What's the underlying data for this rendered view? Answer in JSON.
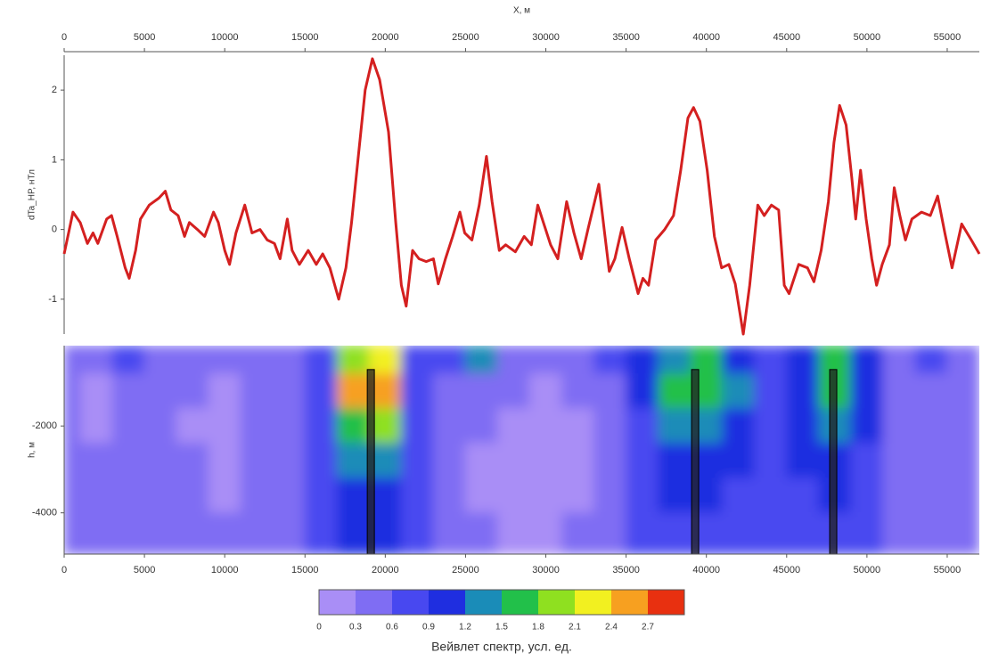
{
  "chart_data": [
    {
      "type": "line",
      "xlabel": "X, м",
      "ylabel": "dTa_HP, нТл",
      "color": "#d42020",
      "xlim": [
        0,
        57000
      ],
      "ylim": [
        -1.5,
        2.5
      ],
      "xticks": [
        0,
        5000,
        10000,
        15000,
        20000,
        25000,
        30000,
        35000,
        40000,
        45000,
        50000,
        55000
      ],
      "yticks": [
        -1,
        0,
        1,
        2
      ],
      "x": [
        0,
        550,
        1000,
        1450,
        1800,
        2100,
        2650,
        2950,
        3300,
        3800,
        4050,
        4450,
        4750,
        5300,
        5900,
        6300,
        6650,
        7100,
        7500,
        7800,
        8300,
        8750,
        9300,
        9600,
        10000,
        10300,
        10700,
        11250,
        11700,
        12200,
        12650,
        13100,
        13450,
        13900,
        14200,
        14650,
        15200,
        15700,
        16100,
        16550,
        17100,
        17550,
        17900,
        18300,
        18750,
        19200,
        19650,
        20200,
        20650,
        21000,
        21300,
        21700,
        22100,
        22550,
        23000,
        23300,
        23750,
        24200,
        24650,
        24950,
        25400,
        25850,
        26300,
        26650,
        27100,
        27500,
        28100,
        28650,
        29100,
        29500,
        29850,
        30300,
        30750,
        31300,
        31750,
        32200,
        32650,
        33300,
        33650,
        33950,
        34300,
        34750,
        35200,
        35750,
        36050,
        36400,
        36850,
        37400,
        37950,
        38400,
        38850,
        39200,
        39600,
        40050,
        40500,
        40950,
        41400,
        41800,
        42300,
        42700,
        43200,
        43600,
        44050,
        44500,
        44850,
        45150,
        45750,
        46300,
        46700,
        47150,
        47600,
        47950,
        48300,
        48700,
        49050,
        49300,
        49600,
        49950,
        50300,
        50600,
        50950,
        51400,
        51700,
        52050,
        52400,
        52800,
        53400,
        53950,
        54400,
        54850,
        55300,
        55900,
        56500,
        57000
      ],
      "values": [
        -0.35,
        0.25,
        0.1,
        -0.2,
        -0.05,
        -0.2,
        0.15,
        0.2,
        -0.1,
        -0.55,
        -0.7,
        -0.3,
        0.15,
        0.35,
        0.45,
        0.55,
        0.28,
        0.2,
        -0.1,
        0.1,
        0,
        -0.1,
        0.25,
        0.1,
        -0.3,
        -0.5,
        -0.05,
        0.35,
        -0.05,
        0,
        -0.15,
        -0.2,
        -0.42,
        0.15,
        -0.3,
        -0.5,
        -0.3,
        -0.5,
        -0.35,
        -0.55,
        -1.0,
        -0.55,
        0.1,
        1.0,
        2.0,
        2.45,
        2.15,
        1.4,
        0.1,
        -0.8,
        -1.1,
        -0.3,
        -0.42,
        -0.46,
        -0.42,
        -0.78,
        -0.42,
        -0.1,
        0.25,
        -0.05,
        -0.15,
        0.35,
        1.05,
        0.4,
        -0.3,
        -0.22,
        -0.32,
        -0.1,
        -0.22,
        0.35,
        0.1,
        -0.22,
        -0.42,
        0.4,
        -0.05,
        -0.42,
        0.03,
        0.65,
        -0.03,
        -0.6,
        -0.42,
        0.03,
        -0.42,
        -0.92,
        -0.7,
        -0.8,
        -0.15,
        0,
        0.2,
        0.85,
        1.6,
        1.75,
        1.55,
        0.85,
        -0.1,
        -0.55,
        -0.5,
        -0.78,
        -1.5,
        -0.8,
        0.35,
        0.2,
        0.35,
        0.28,
        -0.8,
        -0.92,
        -0.5,
        -0.55,
        -0.75,
        -0.3,
        0.4,
        1.25,
        1.78,
        1.5,
        0.75,
        0.15,
        0.85,
        0.15,
        -0.42,
        -0.8,
        -0.5,
        -0.22,
        0.6,
        0.2,
        -0.15,
        0.15,
        0.25,
        0.2,
        0.48,
        -0.05,
        -0.55,
        0.08,
        -0.15,
        -0.35
      ]
    },
    {
      "type": "contour",
      "ylabel": "h, м",
      "xlim": [
        0,
        57000
      ],
      "ylim": [
        -4950,
        -150
      ],
      "xticks": [
        0,
        5000,
        10000,
        15000,
        20000,
        25000,
        30000,
        35000,
        40000,
        45000,
        50000,
        55000
      ],
      "yticks": [
        -2000,
        -4000
      ],
      "x": [
        0,
        2000,
        4000,
        6000,
        8000,
        10000,
        12000,
        14000,
        16000,
        18000,
        20000,
        22000,
        24000,
        26000,
        28000,
        30000,
        32000,
        34000,
        36000,
        38000,
        40000,
        42000,
        44000,
        46000,
        48000,
        50000,
        52000,
        54000,
        56000
      ],
      "h": [
        -400,
        -1200,
        -2000,
        -2800,
        -3600,
        -4400
      ],
      "z": [
        [
          0.5,
          0.3,
          0.6,
          0.3,
          0.4,
          0.3,
          0.5,
          0.4,
          0.6,
          1.8,
          2.2,
          0.7,
          0.6,
          1.2,
          0.5,
          0.4,
          0.4,
          0.6,
          0.9,
          1.3,
          1.6,
          1.1,
          0.7,
          1.0,
          1.5,
          1.0,
          0.5,
          0.6,
          0.4
        ],
        [
          0.4,
          0.2,
          0.5,
          0.4,
          0.3,
          0.2,
          0.4,
          0.4,
          0.7,
          2.4,
          2.6,
          0.8,
          0.4,
          0.5,
          0.3,
          0.2,
          0.3,
          0.4,
          0.9,
          1.5,
          1.7,
          1.2,
          0.6,
          1.1,
          1.6,
          1.1,
          0.5,
          0.4,
          0.3
        ],
        [
          0.4,
          0.2,
          0.5,
          0.4,
          0.2,
          0.2,
          0.4,
          0.4,
          0.7,
          1.7,
          1.8,
          0.8,
          0.4,
          0.3,
          0.2,
          0.2,
          0.2,
          0.3,
          0.8,
          1.2,
          1.3,
          1.0,
          0.6,
          1.0,
          1.3,
          0.9,
          0.4,
          0.4,
          0.3
        ],
        [
          0.5,
          0.4,
          0.5,
          0.4,
          0.3,
          0.2,
          0.3,
          0.4,
          0.7,
          1.3,
          1.3,
          0.8,
          0.4,
          0.2,
          0.1,
          0.1,
          0.2,
          0.4,
          0.8,
          1.0,
          1.0,
          0.9,
          0.6,
          0.9,
          1.0,
          0.8,
          0.4,
          0.4,
          0.4
        ],
        [
          0.5,
          0.5,
          0.5,
          0.4,
          0.3,
          0.2,
          0.3,
          0.4,
          0.7,
          1.0,
          1.0,
          0.7,
          0.4,
          0.2,
          0.1,
          0.1,
          0.2,
          0.4,
          0.7,
          0.9,
          0.9,
          0.8,
          0.6,
          0.8,
          0.9,
          0.7,
          0.5,
          0.4,
          0.5
        ],
        [
          0.5,
          0.5,
          0.5,
          0.5,
          0.4,
          0.3,
          0.4,
          0.5,
          0.7,
          0.9,
          0.9,
          0.7,
          0.5,
          0.3,
          0.2,
          0.2,
          0.3,
          0.4,
          0.7,
          0.8,
          0.8,
          0.7,
          0.6,
          0.7,
          0.8,
          0.7,
          0.5,
          0.5,
          0.5
        ]
      ],
      "markers": {
        "x": [
          19100,
          39300,
          47900
        ],
        "top": [
          -700,
          -700,
          -700
        ]
      },
      "colorbar": {
        "label": "Вейвлет спектр, усл. ед.",
        "lim": [
          0,
          3
        ],
        "ticks": [
          0,
          0.3,
          0.6,
          0.9,
          1.2,
          1.5,
          1.8,
          2.1,
          2.4,
          2.7
        ],
        "colors": [
          "#a98ef6",
          "#7f6df3",
          "#4848f0",
          "#1f2ee0",
          "#1a8cb8",
          "#22c04a",
          "#8fe020",
          "#f2f020",
          "#f7a020",
          "#e83010"
        ]
      }
    }
  ]
}
